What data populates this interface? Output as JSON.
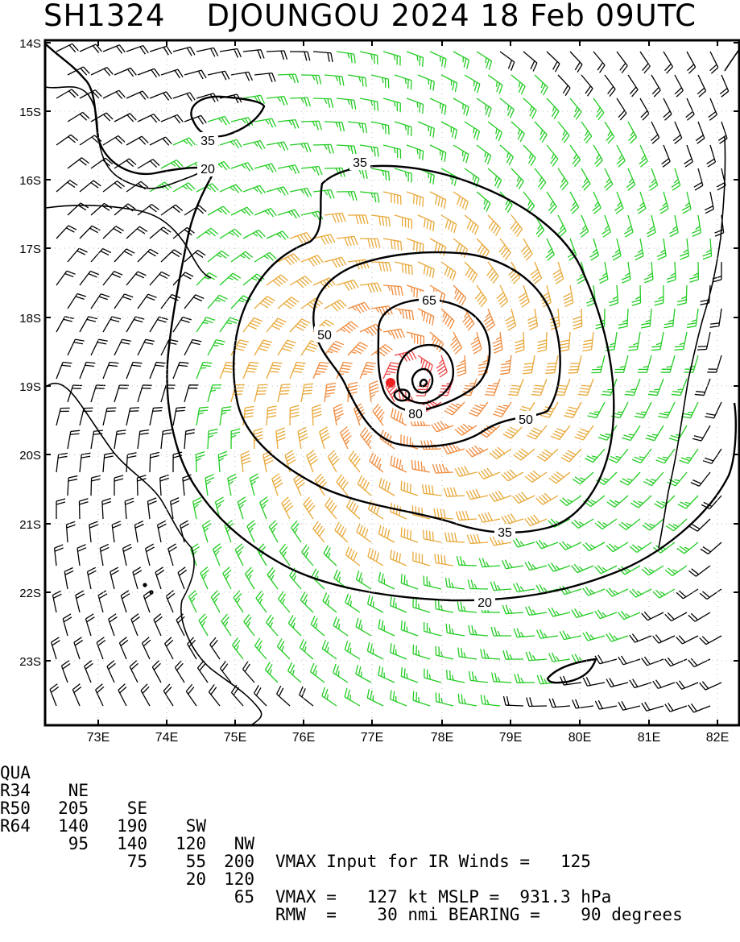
{
  "header": {
    "storm_id": "SH1324",
    "storm_name": "DJOUNGOU",
    "year": "2024",
    "day": "18",
    "month": "Feb",
    "time": "09UTC"
  },
  "map": {
    "lat_labels": [
      "14S",
      "15S",
      "16S",
      "17S",
      "18S",
      "19S",
      "20S",
      "21S",
      "22S",
      "23S"
    ],
    "lon_labels": [
      "73E",
      "74E",
      "75E",
      "76E",
      "77E",
      "78E",
      "79E",
      "80E",
      "81E",
      "82E"
    ],
    "contour_labels": [
      "35",
      "20",
      "35",
      "50",
      "65",
      "50",
      "80",
      "35",
      "20"
    ],
    "wind_colors": {
      "below_34kt": "#000000",
      "34_to_49kt": "#22cc22",
      "50_to_63kt": "#e8a838",
      "64_to_79kt": "#f08a3c",
      "80_plus_kt": "#ee4444",
      "center_marker": "#ee2222"
    }
  },
  "stats": {
    "quadrant_header": {
      "label": "QUA",
      "ne": "NE",
      "se": "SE",
      "sw": "SW",
      "nw": "NW"
    },
    "rows": [
      {
        "label": "R34",
        "ne": "205",
        "se": "190",
        "sw": "120",
        "nw": "200"
      },
      {
        "label": "R50",
        "ne": "140",
        "se": "140",
        "sw": "55",
        "nw": "120"
      },
      {
        "label": "R64",
        "ne": "95",
        "se": "75",
        "sw": "20",
        "nw": "65"
      }
    ],
    "vmax_input_text": "VMAX Input for IR Winds =   125",
    "vmax_mslp_text": "VMAX =   127 kt MSLP =  931.3 hPa",
    "rmw_bearing_text": "RMW  =    30 nmi BEARING =    90 degrees"
  }
}
